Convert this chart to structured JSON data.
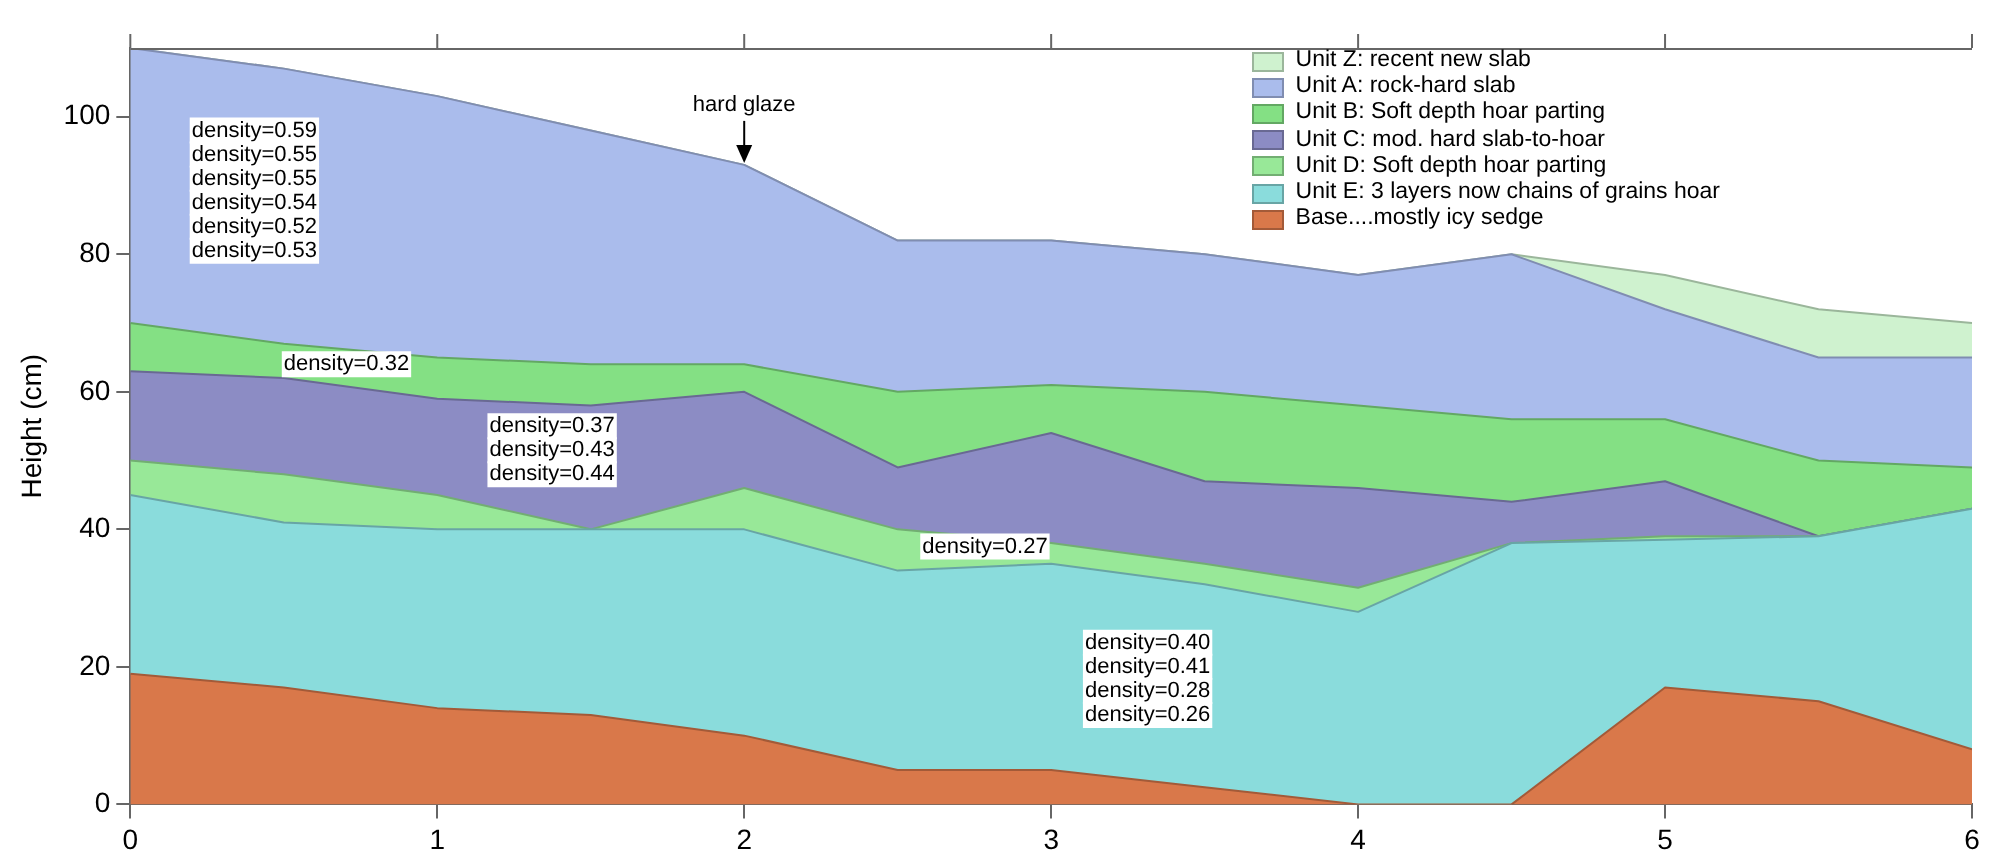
{
  "chart_data": {
    "type": "area",
    "stacked": true,
    "ylabel": "Height (cm)",
    "x": [
      0,
      0.5,
      1,
      1.5,
      2,
      2.5,
      3,
      3.5,
      4,
      4.5,
      5,
      5.5,
      6
    ],
    "xlim": [
      0,
      6
    ],
    "xticks": [
      0,
      1,
      2,
      3,
      4,
      5,
      6
    ],
    "ylim": [
      0,
      110
    ],
    "yticks": [
      0,
      20,
      40,
      60,
      80,
      100
    ],
    "grid": false,
    "legend": "top right",
    "marker": "none",
    "series": [
      {
        "name": "Base....mostly icy sedge",
        "color": "#d9784a",
        "values": [
          19,
          17,
          14,
          13,
          10,
          5,
          5,
          2.5,
          0,
          0,
          17,
          15,
          8
        ]
      },
      {
        "name": "Unit E: 3 layers now chains of grains hoar",
        "color": "#8adcdc",
        "values": [
          26,
          24,
          26,
          27,
          30,
          29,
          30,
          29.5,
          28,
          38,
          21.5,
          24,
          35
        ]
      },
      {
        "name": "Unit D: Soft depth hoar parting",
        "color": "#98e898",
        "values": [
          5,
          7,
          5,
          0,
          6,
          6,
          3,
          3,
          3.5,
          0,
          0.5,
          0,
          0
        ]
      },
      {
        "name": "Unit C: mod. hard slab-to-hoar",
        "color": "#8c8cc4",
        "values": [
          13,
          14,
          14,
          18,
          14,
          9,
          16,
          12,
          14.5,
          6,
          8,
          0,
          0
        ]
      },
      {
        "name": "Unit B: Soft depth hoar parting",
        "color": "#84e084",
        "values": [
          7,
          5,
          6,
          6,
          4,
          11,
          7,
          13,
          12,
          12,
          9,
          11,
          6
        ]
      },
      {
        "name": "Unit A: rock-hard slab",
        "color": "#aabcec",
        "values": [
          40,
          40,
          38,
          34,
          29,
          22,
          21,
          20,
          19,
          24,
          16,
          15,
          16
        ]
      },
      {
        "name": "Unit Z: recent new slab",
        "color": "#cff2cf",
        "values": [
          0,
          0,
          0,
          0,
          0,
          0,
          0,
          0,
          0,
          0,
          5,
          7,
          5
        ]
      }
    ],
    "annotations": [
      {
        "text": "hard glaze",
        "x": 2,
        "y": 93
      },
      "density=0.59",
      "density=0.55",
      "density=0.55",
      "density=0.54",
      "density=0.52",
      "density=0.53",
      "density=0.32",
      "density=0.37",
      "density=0.43",
      "density=0.44",
      "density=0.27",
      "density=0.40",
      "density=0.41",
      "density=0.28",
      "density=0.26"
    ]
  }
}
